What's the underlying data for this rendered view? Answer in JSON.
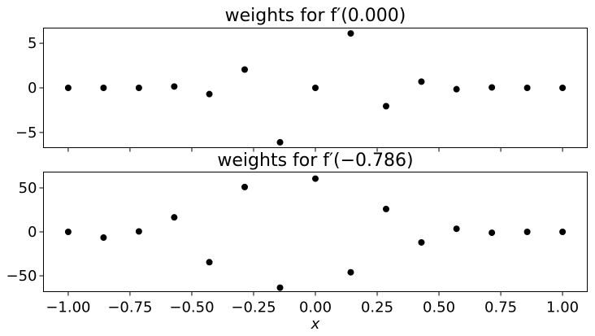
{
  "chart_data": [
    {
      "type": "scatter",
      "title": "weights for f′(0.000)",
      "xlim": [
        -1.1,
        1.1
      ],
      "ylim": [
        -6.7,
        6.7
      ],
      "xticks": [
        -1.0,
        -0.75,
        -0.5,
        -0.25,
        0.0,
        0.25,
        0.5,
        0.75,
        1.0
      ],
      "yticks": [
        5,
        0,
        -5
      ],
      "ytick_labels": [
        "5",
        "0",
        "−5"
      ],
      "show_xtick_labels": false,
      "grid": false,
      "color": "#000000",
      "x": [
        -1.0,
        -0.857,
        -0.714,
        -0.571,
        -0.429,
        -0.286,
        -0.143,
        0.0,
        0.143,
        0.286,
        0.429,
        0.571,
        0.714,
        0.857,
        1.0
      ],
      "y": [
        0.0,
        0.0,
        0.0,
        0.15,
        -0.7,
        2.05,
        -6.1,
        0.0,
        6.1,
        -2.05,
        0.7,
        -0.15,
        0.05,
        0.0,
        0.0
      ]
    },
    {
      "type": "scatter",
      "title": "weights for f′(−0.786)",
      "xlim": [
        -1.1,
        1.1
      ],
      "ylim": [
        -68,
        68
      ],
      "xticks": [
        -1.0,
        -0.75,
        -0.5,
        -0.25,
        0.0,
        0.25,
        0.5,
        0.75,
        1.0
      ],
      "xtick_labels": [
        "−1.00",
        "−0.75",
        "−0.50",
        "−0.25",
        "0.00",
        "0.25",
        "0.50",
        "0.75",
        "1.00"
      ],
      "yticks": [
        50,
        0,
        -50
      ],
      "ytick_labels": [
        "50",
        "0",
        "−50"
      ],
      "show_xtick_labels": true,
      "xlabel": "x",
      "grid": false,
      "color": "#000000",
      "x": [
        -1.0,
        -0.857,
        -0.714,
        -0.571,
        -0.429,
        -0.286,
        -0.143,
        0.0,
        0.143,
        0.286,
        0.429,
        0.571,
        0.714,
        0.857,
        1.0
      ],
      "y": [
        0.0,
        -6.5,
        0.5,
        16.5,
        -34.5,
        51.0,
        -63.5,
        60.5,
        -46.0,
        26.0,
        -12.0,
        3.5,
        -1.0,
        0.0,
        0.0
      ]
    }
  ]
}
